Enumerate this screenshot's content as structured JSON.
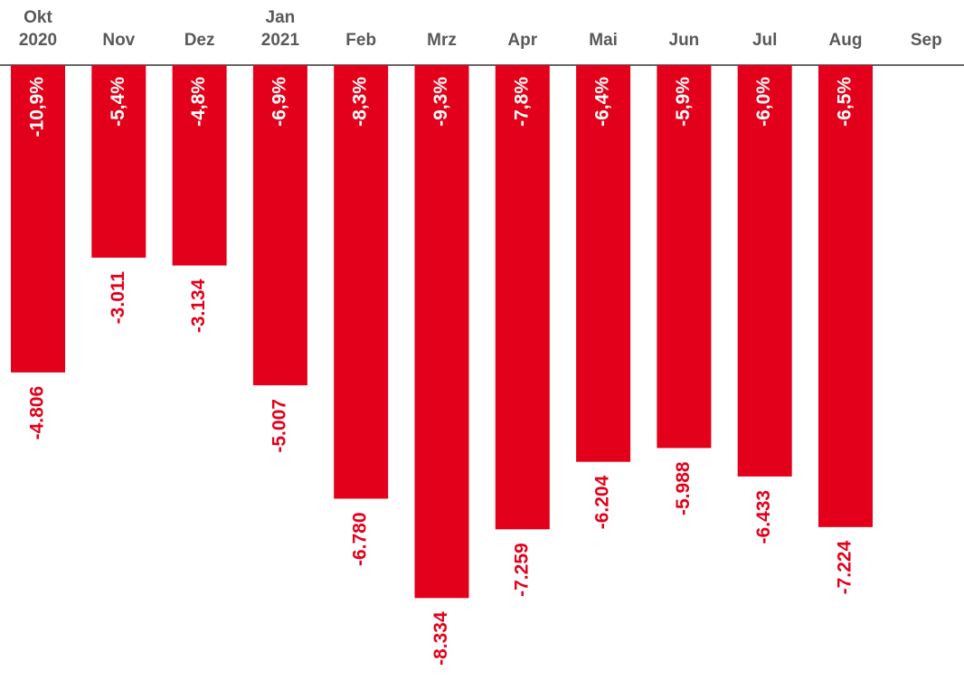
{
  "chart_data": {
    "type": "bar",
    "categories": [
      [
        "Okt",
        "2020"
      ],
      [
        "Nov"
      ],
      [
        "Dez"
      ],
      [
        "Jan",
        "2021"
      ],
      [
        "Feb"
      ],
      [
        "Mrz"
      ],
      [
        "Apr"
      ],
      [
        "Mai"
      ],
      [
        "Jun"
      ],
      [
        "Jul"
      ],
      [
        "Aug"
      ],
      [
        "Sep"
      ]
    ],
    "values": [
      -4806,
      -3011,
      -3134,
      -5007,
      -6780,
      -8334,
      -7259,
      -6204,
      -5988,
      -6433,
      -7224,
      null
    ],
    "value_labels": [
      "-4.806",
      "-3.011",
      "-3.134",
      "-5.007",
      "-6.780",
      "-8.334",
      "-7.259",
      "-6.204",
      "-5.988",
      "-6.433",
      "-7.224",
      null
    ],
    "inner_labels": [
      "-10,9%",
      "-5,4%",
      "-4,8%",
      "-6,9%",
      "-8,3%",
      "-9,3%",
      "-7,8%",
      "-6,4%",
      "-5,9%",
      "-6,0%",
      "-6,5%",
      null
    ],
    "color": "#e2001a",
    "ylim": [
      -9800,
      0
    ]
  }
}
